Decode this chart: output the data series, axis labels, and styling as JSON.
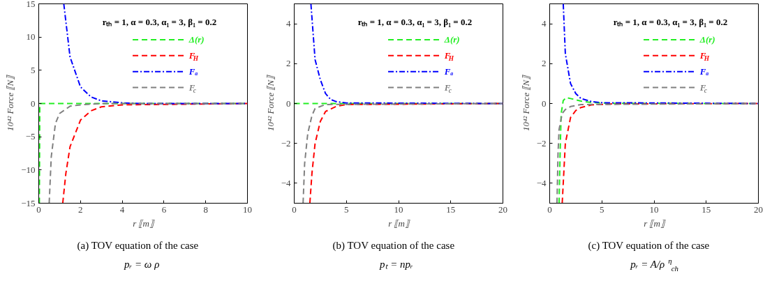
{
  "chart_data": [
    {
      "type": "line",
      "title": "(a) TOV equation of the case",
      "subtitle": "pᵣ = ω ρ",
      "xlabel": "r ⟦m⟧",
      "ylabel": "10⁴² Force ⟦N⟧",
      "annotations": [
        "rₜₕ = 1, α = 0.3, α₁ = 3, β₁ = 0.2"
      ],
      "xlim": [
        0,
        10
      ],
      "ylim": [
        -15,
        15
      ],
      "xticks": [
        0,
        2,
        4,
        6,
        8,
        10
      ],
      "yticks": [
        {
          "value": -15,
          "label": "−15"
        },
        {
          "value": -10,
          "label": "−10"
        },
        {
          "value": -5,
          "label": "−5"
        },
        0,
        5,
        10,
        15
      ],
      "grid": false,
      "legend": "top right",
      "series": [
        {
          "name": "Δ(r)",
          "color": "#22ee22",
          "line_style": "dashed",
          "x": [
            0.03,
            0.05,
            10
          ],
          "values": [
            -15,
            0,
            0
          ]
        },
        {
          "name": "F$_{H}$",
          "color": "#ff0000",
          "line_style": "dashed",
          "x": [
            1.15,
            1.3,
            1.5,
            2,
            2.5,
            3,
            4,
            10
          ],
          "values": [
            -15,
            -10.5,
            -6.5,
            -2.5,
            -1.1,
            -0.5,
            -0.2,
            0
          ]
        },
        {
          "name": "Fₐ",
          "color": "#0000ff",
          "line_style": "dashdot",
          "x": [
            1.2,
            1.5,
            2,
            2.5,
            3,
            4,
            5,
            10
          ],
          "values": [
            15,
            7,
            2.5,
            1,
            0.4,
            0.1,
            0,
            0
          ]
        },
        {
          "name": "F$_{c}$",
          "color": "#808080",
          "line_style": "dashed",
          "x": [
            0.5,
            0.6,
            0.8,
            1,
            1.5,
            2,
            3,
            10
          ],
          "values": [
            -15,
            -8,
            -3,
            -1.5,
            -0.4,
            -0.2,
            0,
            0
          ]
        }
      ]
    },
    {
      "type": "line",
      "title": "(b) TOV equation of the case",
      "subtitle": "pₜ = npᵣ",
      "xlabel": "r ⟦m⟧",
      "ylabel": "10⁴² Force ⟦N⟧",
      "annotations": [
        "rₜₕ = 1, α = 0.3, α₁ = 3, β₁ = 0.2"
      ],
      "xlim": [
        0,
        20
      ],
      "ylim": [
        -5,
        5
      ],
      "xticks": [
        0,
        5,
        10,
        15,
        20
      ],
      "yticks": [
        {
          "value": -4,
          "label": "−4"
        },
        {
          "value": -2,
          "label": "−2"
        },
        0,
        2,
        4
      ],
      "grid": false,
      "legend": "top right",
      "series": [
        {
          "name": "Δ(r)",
          "color": "#22ee22",
          "line_style": "dashed",
          "x": [
            0,
            20
          ],
          "values": [
            0,
            0
          ]
        },
        {
          "name": "F$_{H}$",
          "color": "#ff0000",
          "line_style": "dashed",
          "x": [
            1.5,
            1.7,
            2,
            2.5,
            3,
            4,
            5,
            20
          ],
          "values": [
            -5,
            -3.5,
            -2,
            -0.9,
            -0.4,
            -0.15,
            -0.05,
            0
          ]
        },
        {
          "name": "Fₐ",
          "color": "#0000ff",
          "line_style": "dashdot",
          "x": [
            1.6,
            2,
            2.5,
            3,
            3.5,
            4,
            5,
            20
          ],
          "values": [
            5,
            2.2,
            1.2,
            0.5,
            0.2,
            0.1,
            0.03,
            0
          ]
        },
        {
          "name": "F$_{c}$",
          "color": "#808080",
          "line_style": "dashed",
          "x": [
            0.85,
            1,
            1.3,
            1.7,
            2,
            3,
            20
          ],
          "values": [
            -5,
            -3,
            -1.5,
            -0.6,
            -0.25,
            -0.05,
            0
          ]
        }
      ]
    },
    {
      "type": "line",
      "title": "(c) TOV equation of the case",
      "subtitle": "pᵣ = A/ρ$^{η}$$_{ch}$",
      "xlabel": "r ⟦m⟧",
      "ylabel": "10⁴² Force ⟦N⟧",
      "annotations": [
        "rₜₕ = 1, α = 0.3, α₁ = 3, β₁ = 0.2"
      ],
      "xlim": [
        0,
        20
      ],
      "ylim": [
        -5,
        5
      ],
      "xticks": [
        0,
        5,
        10,
        15,
        20
      ],
      "yticks": [
        {
          "value": -4,
          "label": "−4"
        },
        {
          "value": -2,
          "label": "−2"
        },
        0,
        2,
        4
      ],
      "grid": false,
      "legend": "top right",
      "series": [
        {
          "name": "Δ(r)",
          "color": "#22ee22",
          "line_style": "dashed",
          "x": [
            0.9,
            1,
            1.1,
            1.3,
            1.6,
            2,
            3,
            4,
            6,
            20
          ],
          "values": [
            -5,
            -2.5,
            -0.5,
            0.15,
            0.3,
            0.25,
            0.12,
            0.05,
            0.01,
            0
          ]
        },
        {
          "name": "F$_{H}$",
          "color": "#ff0000",
          "line_style": "dashed",
          "x": [
            1.2,
            1.5,
            2,
            2.5,
            3,
            4,
            6,
            20
          ],
          "values": [
            -5,
            -2,
            -0.7,
            -0.35,
            -0.2,
            -0.07,
            -0.02,
            0
          ]
        },
        {
          "name": "Fₐ",
          "color": "#0000ff",
          "line_style": "dashdot",
          "x": [
            1.3,
            1.5,
            2,
            2.5,
            3,
            4,
            5,
            20
          ],
          "values": [
            5,
            2.5,
            1,
            0.5,
            0.25,
            0.1,
            0.04,
            0
          ]
        },
        {
          "name": "F$_{c}$",
          "color": "#808080",
          "line_style": "dashed",
          "x": [
            0.7,
            0.8,
            0.9,
            1.2,
            1.5,
            2,
            3,
            20
          ],
          "values": [
            -5,
            -2.5,
            -1.3,
            -0.5,
            -0.3,
            -0.15,
            -0.05,
            0
          ]
        }
      ]
    }
  ]
}
